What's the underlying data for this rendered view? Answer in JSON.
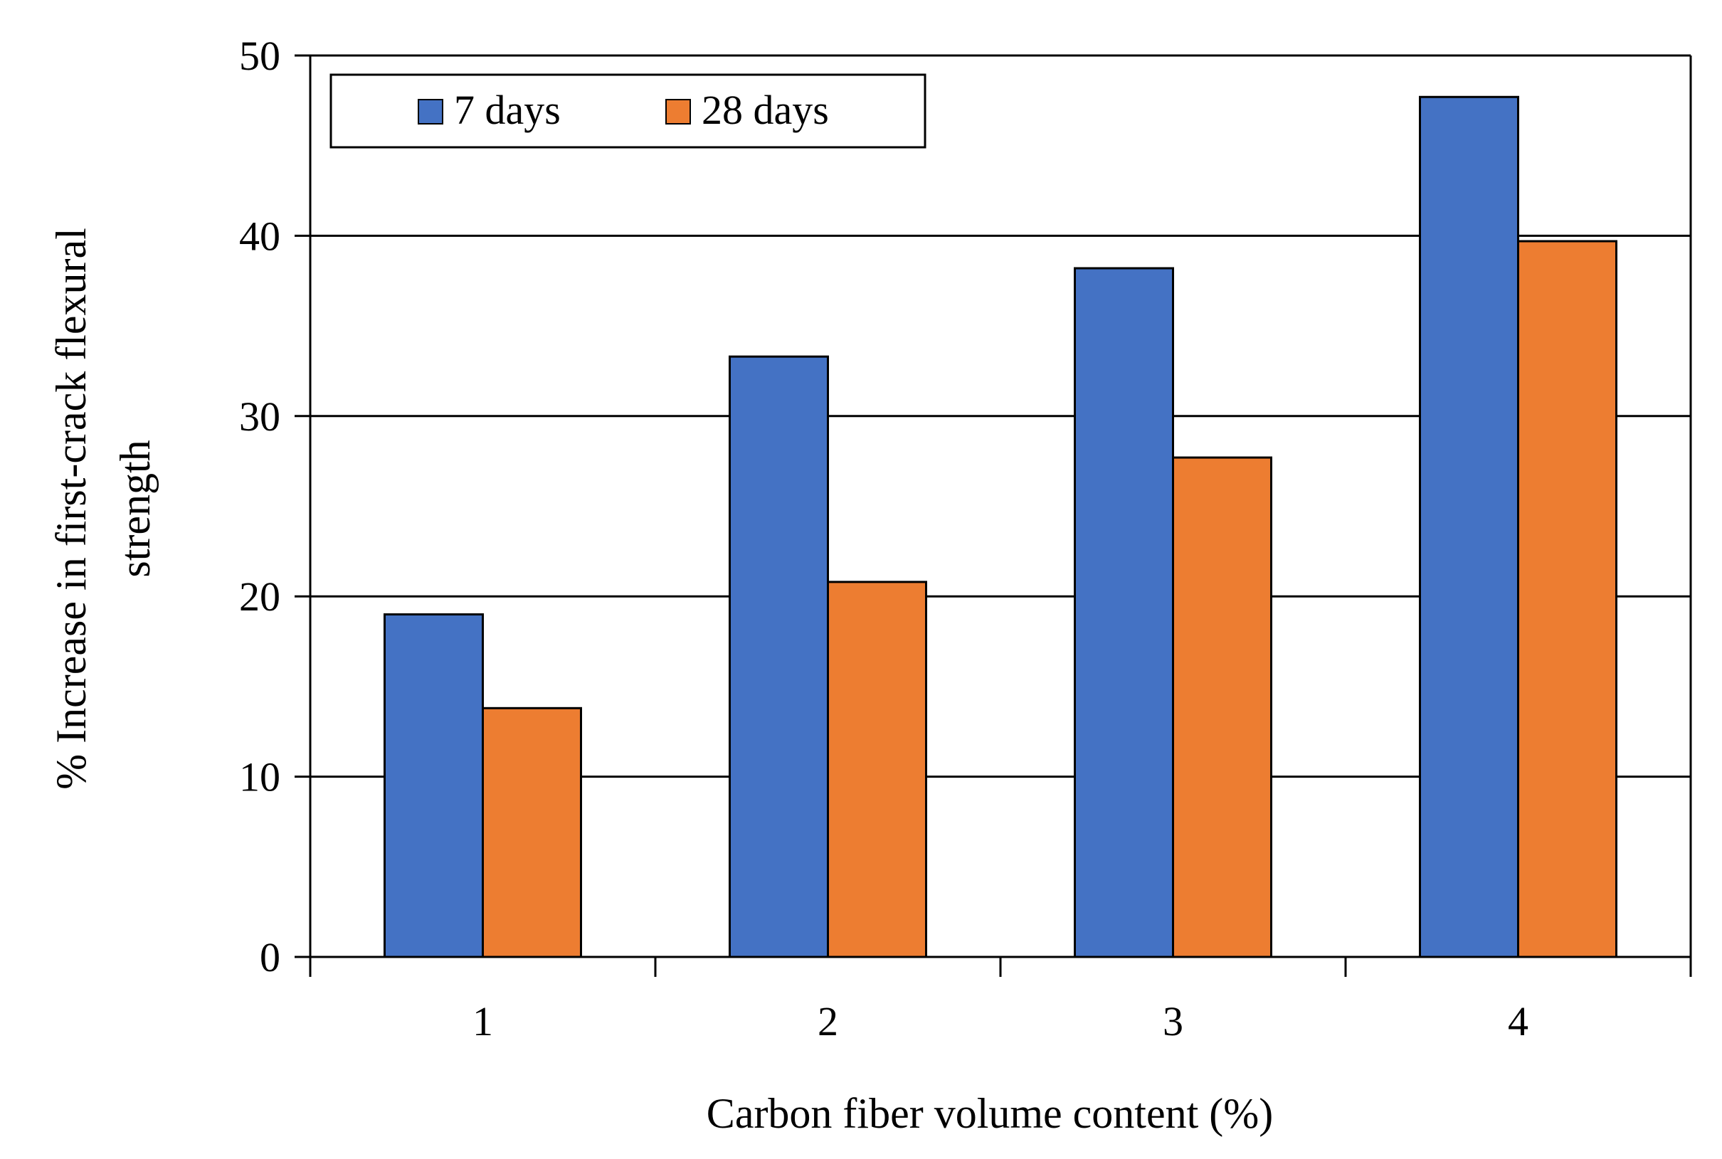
{
  "chart_data": {
    "type": "bar",
    "title": "",
    "xlabel": "Carbon fiber volume content (%)",
    "ylabel_lines": [
      "% Increase in first-crack flexural",
      "strength"
    ],
    "categories": [
      "1",
      "2",
      "3",
      "4"
    ],
    "series": [
      {
        "name": "7 days",
        "color": "#4472C4",
        "values": [
          19,
          33.3,
          38.2,
          47.7
        ]
      },
      {
        "name": "28 days",
        "color": "#ED7D31",
        "values": [
          13.8,
          20.8,
          27.7,
          39.7
        ]
      }
    ],
    "ylim": [
      0,
      50
    ],
    "yticks": [
      0,
      10,
      20,
      30,
      40,
      50
    ],
    "grid": true,
    "legend_position": "top-left"
  }
}
